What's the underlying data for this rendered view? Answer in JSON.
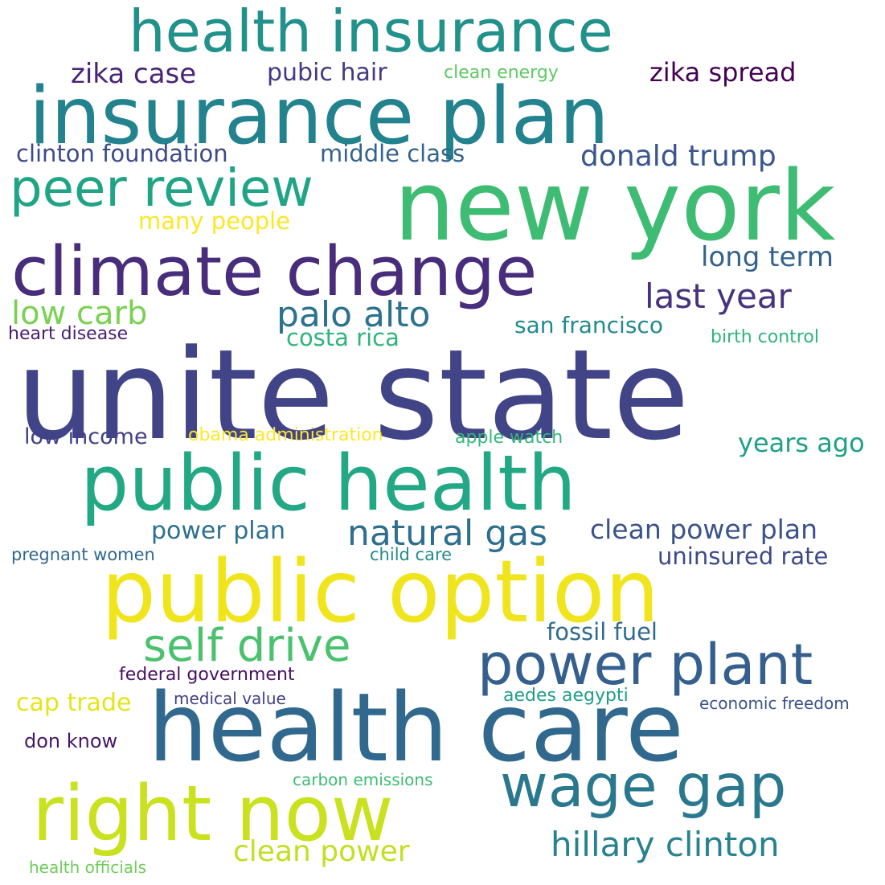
{
  "word_cloud": {
    "words": [
      {
        "text": "unite state",
        "color": "#414487"
      },
      {
        "text": "health care",
        "color": "#31688e"
      },
      {
        "text": "new york",
        "color": "#3fbc73"
      },
      {
        "text": "public option",
        "color": "#f0e51d"
      },
      {
        "text": "insurance plan",
        "color": "#22838e"
      },
      {
        "text": "public health",
        "color": "#22a884"
      },
      {
        "text": "climate change",
        "color": "#472d7b"
      },
      {
        "text": "health insurance",
        "color": "#21918c"
      },
      {
        "text": "right now",
        "color": "#cae11f"
      },
      {
        "text": "wage gap",
        "color": "#2a788e"
      },
      {
        "text": "power plant",
        "color": "#355f8d"
      },
      {
        "text": "peer review",
        "color": "#20a486"
      },
      {
        "text": "self drive",
        "color": "#4ac16d"
      },
      {
        "text": "hillary clinton",
        "color": "#26828e"
      },
      {
        "text": "natural gas",
        "color": "#2e6e8e"
      },
      {
        "text": "palo alto",
        "color": "#2c728e"
      },
      {
        "text": "last year",
        "color": "#46327e"
      },
      {
        "text": "low carb",
        "color": "#7ad151"
      },
      {
        "text": "donald trump",
        "color": "#39568c"
      },
      {
        "text": "clean power",
        "color": "#c2df23"
      },
      {
        "text": "clean power plan",
        "color": "#3b528b"
      },
      {
        "text": "long term",
        "color": "#33638d"
      },
      {
        "text": "years ago",
        "color": "#1fa187"
      },
      {
        "text": "zika case",
        "color": "#482475"
      },
      {
        "text": "zika spread",
        "color": "#440154"
      },
      {
        "text": "pubic hair",
        "color": "#443983"
      },
      {
        "text": "clinton foundation",
        "color": "#3e4989"
      },
      {
        "text": "middle class",
        "color": "#33638d"
      },
      {
        "text": "many people",
        "color": "#fde725"
      },
      {
        "text": "costa rica",
        "color": "#2fb47c"
      },
      {
        "text": "san francisco",
        "color": "#238a8d"
      },
      {
        "text": "power plan",
        "color": "#2d708e"
      },
      {
        "text": "uninsured rate",
        "color": "#3e4989"
      },
      {
        "text": "fossil fuel",
        "color": "#2f6b8e"
      },
      {
        "text": "cap trade",
        "color": "#e5e419"
      },
      {
        "text": "low income",
        "color": "#424086"
      },
      {
        "text": "apple watch",
        "color": "#35b779"
      },
      {
        "text": "obama administration",
        "color": "#fde725"
      },
      {
        "text": "clean energy",
        "color": "#5ec962"
      },
      {
        "text": "heart disease",
        "color": "#481f70"
      },
      {
        "text": "birth control",
        "color": "#2fb47c"
      },
      {
        "text": "pregnant women",
        "color": "#31688e"
      },
      {
        "text": "child care",
        "color": "#238a8d"
      },
      {
        "text": "federal government",
        "color": "#471063"
      },
      {
        "text": "medical value",
        "color": "#433e85"
      },
      {
        "text": "aedes aegypti",
        "color": "#1f9e89"
      },
      {
        "text": "economic freedom",
        "color": "#3b528b"
      },
      {
        "text": "don know",
        "color": "#481769"
      },
      {
        "text": "carbon emissions",
        "color": "#3dbc74"
      },
      {
        "text": "health officials",
        "color": "#6ece58"
      }
    ]
  }
}
